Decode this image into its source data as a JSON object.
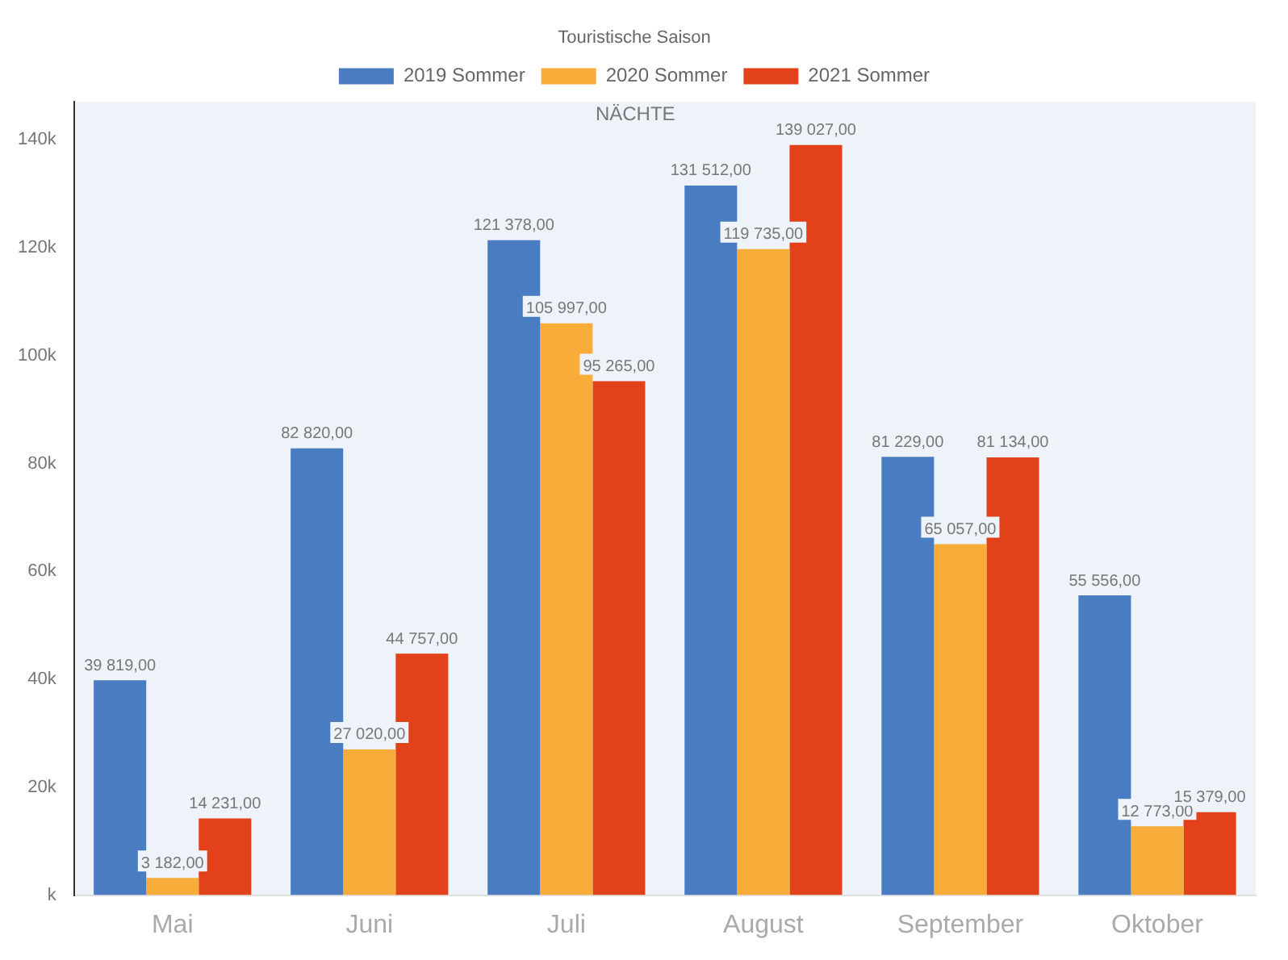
{
  "chart_data": {
    "type": "bar",
    "legend_title": "Touristische Saison",
    "legend": "top",
    "grid": false,
    "annotations": [
      "NÄCHTE"
    ],
    "categories": [
      "Mai",
      "Juni",
      "Juli",
      "August",
      "September",
      "Oktober"
    ],
    "ylim": [
      0,
      147000
    ],
    "yticks": [
      {
        "value": 0,
        "label": "k"
      },
      {
        "value": 20000,
        "label": "20k"
      },
      {
        "value": 40000,
        "label": "40k"
      },
      {
        "value": 60000,
        "label": "60k"
      },
      {
        "value": 80000,
        "label": "80k"
      },
      {
        "value": 100000,
        "label": "100k"
      },
      {
        "value": 120000,
        "label": "120k"
      },
      {
        "value": 140000,
        "label": "140k"
      }
    ],
    "series": [
      {
        "name": "2019 Sommer",
        "color": "#4a7cc1",
        "values": [
          39819,
          82820,
          121378,
          131512,
          81229,
          55556
        ],
        "value_labels": [
          "39 819,00",
          "82 820,00",
          "121 378,00",
          "131 512,00",
          "81 229,00",
          "55 556,00"
        ]
      },
      {
        "name": "2020 Sommer",
        "color": "#f8ad3b",
        "values": [
          3182,
          27020,
          105997,
          119735,
          65057,
          12773
        ],
        "value_labels": [
          "3 182,00",
          "27 020,00",
          "105 997,00",
          "119 735,00",
          "65 057,00",
          "12 773,00"
        ]
      },
      {
        "name": "2021 Sommer",
        "color": "#e2411a",
        "values": [
          14231,
          44757,
          95265,
          139027,
          81134,
          15379
        ],
        "value_labels": [
          "14 231,00",
          "44 757,00",
          "95 265,00",
          "139 027,00",
          "81 134,00",
          "15 379,00"
        ]
      }
    ]
  }
}
